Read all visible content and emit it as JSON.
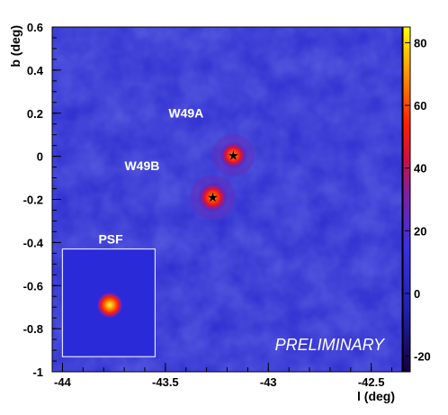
{
  "chart_data": {
    "type": "heatmap",
    "xlabel": "l (deg)",
    "ylabel": "b (deg)",
    "xlim": [
      -44.05,
      -42.35
    ],
    "ylim": [
      -1.0,
      0.6
    ],
    "x_reversed": false,
    "xticks": [
      {
        "value": -44,
        "label": "-44"
      },
      {
        "value": -43.5,
        "label": "-43.5"
      },
      {
        "value": -43,
        "label": "-43"
      },
      {
        "value": -42.5,
        "label": "-42.5"
      }
    ],
    "yticks": [
      {
        "value": 0.6,
        "label": "0.6"
      },
      {
        "value": 0.4,
        "label": "0.4"
      },
      {
        "value": 0.2,
        "label": "0.2"
      },
      {
        "value": 0,
        "label": "0"
      },
      {
        "value": -0.2,
        "label": "-0.2"
      },
      {
        "value": -0.4,
        "label": "-0.4"
      },
      {
        "value": -0.6,
        "label": "-0.6"
      },
      {
        "value": -0.8,
        "label": "-0.8"
      },
      {
        "value": -1,
        "label": "-1"
      }
    ],
    "colorbar": {
      "range": [
        -25,
        85
      ],
      "ticks": [
        {
          "value": 80,
          "label": "80"
        },
        {
          "value": 60,
          "label": "60"
        },
        {
          "value": 40,
          "label": "40"
        },
        {
          "value": 20,
          "label": "20"
        },
        {
          "value": 0,
          "label": "0"
        },
        {
          "value": -20,
          "label": "-20"
        }
      ],
      "colors": [
        "#1a0050",
        "#2a2ad8",
        "#6030c8",
        "#c01060",
        "#ff1010",
        "#ff8c00",
        "#ffff00"
      ]
    },
    "sources": [
      {
        "name": "W49A",
        "l": -43.17,
        "b": 0.005,
        "peak": 55
      },
      {
        "name": "W49B",
        "l": -43.27,
        "b": -0.19,
        "peak": 70
      }
    ],
    "psf_inset": {
      "title": "PSF",
      "l_range": [
        -44.0,
        -43.55
      ],
      "b_range": [
        -0.93,
        -0.43
      ],
      "center": {
        "l": -43.77,
        "b": -0.69
      }
    },
    "watermark": "PRELIMINARY",
    "background_level": 20
  }
}
